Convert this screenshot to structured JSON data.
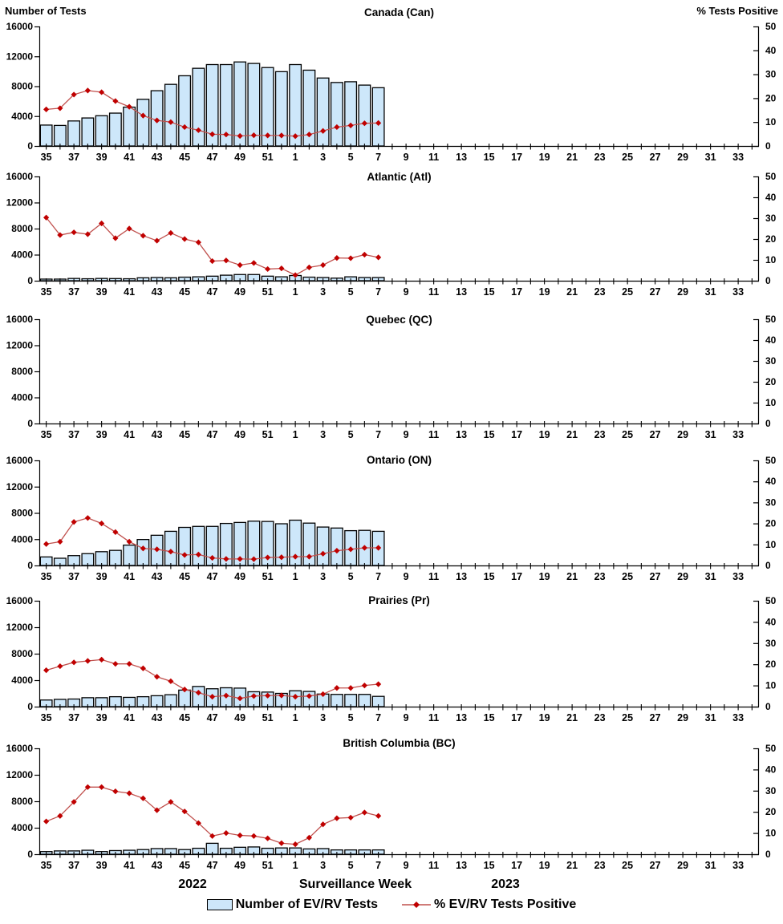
{
  "axis_headers": {
    "left": "Number of Tests",
    "right": "% Tests Positive"
  },
  "footer": {
    "year_left": "2022",
    "x_axis_label": "Surveillance Week",
    "year_right": "2023"
  },
  "legend": {
    "bars_label": "Number of EV/RV Tests",
    "line_label": "% EV/RV Tests Positive"
  },
  "colors": {
    "bar_fill": "#CDE7FA",
    "bar_stroke": "#000000",
    "line_color": "#C0504D",
    "marker_color": "#C00000",
    "axis_color": "#000000"
  },
  "axes": {
    "left_ticks": [
      0,
      4000,
      8000,
      12000,
      16000
    ],
    "left_max": 16000,
    "right_ticks": [
      0,
      10,
      20,
      30,
      40,
      50
    ],
    "right_max": 50,
    "weeks": [
      35,
      36,
      37,
      38,
      39,
      40,
      41,
      42,
      43,
      44,
      45,
      46,
      47,
      48,
      49,
      50,
      51,
      52,
      1,
      2,
      3,
      4,
      5,
      6,
      7,
      8,
      9,
      10,
      11,
      12,
      13,
      14,
      15,
      16,
      17,
      18,
      19,
      20,
      21,
      22,
      23,
      24,
      25,
      26,
      27,
      28,
      29,
      30,
      31,
      32,
      33,
      34
    ]
  },
  "chart_data": [
    {
      "type": "bar+line",
      "title": "Canada (Can)",
      "region": "Canada",
      "ylim_left": [
        0,
        16000
      ],
      "ylim_right": [
        0,
        50
      ],
      "weeks": [
        35,
        36,
        37,
        38,
        39,
        40,
        41,
        42,
        43,
        44,
        45,
        46,
        47,
        48,
        49,
        50,
        51,
        52,
        1,
        2,
        3,
        4,
        5,
        6,
        7
      ],
      "tests": [
        2800,
        2750,
        3350,
        3750,
        4050,
        4400,
        5200,
        6250,
        7400,
        8250,
        9400,
        10400,
        10900,
        10900,
        11250,
        11050,
        10500,
        9950,
        10900,
        10150,
        9100,
        8500,
        8600,
        8150,
        7800
      ],
      "pct_positive": [
        15.3,
        15.8,
        21.5,
        23.2,
        22.5,
        18.8,
        16.4,
        12.7,
        10.7,
        10.0,
        7.9,
        6.6,
        4.9,
        4.8,
        4.2,
        4.5,
        4.4,
        4.4,
        4.1,
        4.8,
        6.3,
        7.9,
        8.6,
        9.5,
        9.6
      ]
    },
    {
      "type": "bar+line",
      "title": "Atlantic (Atl)",
      "region": "Atlantic",
      "ylim_left": [
        0,
        16000
      ],
      "ylim_right": [
        0,
        50
      ],
      "weeks": [
        35,
        36,
        37,
        38,
        39,
        40,
        41,
        42,
        43,
        44,
        45,
        46,
        47,
        48,
        49,
        50,
        51,
        52,
        1,
        2,
        3,
        4,
        5,
        6,
        7
      ],
      "tests": [
        250,
        250,
        350,
        300,
        350,
        330,
        300,
        450,
        500,
        450,
        550,
        600,
        700,
        850,
        950,
        950,
        700,
        600,
        800,
        550,
        500,
        400,
        600,
        500,
        500
      ],
      "pct_positive": [
        30.3,
        21.9,
        23.2,
        22.3,
        27.5,
        20.4,
        25.0,
        21.6,
        19.2,
        22.9,
        20.0,
        18.4,
        9.4,
        9.7,
        7.5,
        8.5,
        5.6,
        5.9,
        2.7,
        6.4,
        7.5,
        10.9,
        10.8,
        12.5,
        11.2
      ]
    },
    {
      "type": "bar+line",
      "title": "Quebec (QC)",
      "region": "Quebec",
      "ylim_left": [
        0,
        16000
      ],
      "ylim_right": [
        0,
        50
      ],
      "weeks": [],
      "tests": [],
      "pct_positive": []
    },
    {
      "type": "bar+line",
      "title": "Ontario (ON)",
      "region": "Ontario",
      "ylim_left": [
        0,
        16000
      ],
      "ylim_right": [
        0,
        50
      ],
      "weeks": [
        35,
        36,
        37,
        38,
        39,
        40,
        41,
        42,
        43,
        44,
        45,
        46,
        47,
        48,
        49,
        50,
        51,
        52,
        1,
        2,
        3,
        4,
        5,
        6,
        7
      ],
      "tests": [
        1300,
        1100,
        1500,
        1800,
        2100,
        2300,
        3100,
        3950,
        4600,
        5200,
        5800,
        5950,
        5950,
        6400,
        6550,
        6750,
        6700,
        6350,
        6900,
        6450,
        5850,
        5700,
        5300,
        5350,
        5200
      ],
      "pct_positive": [
        10.2,
        11.3,
        20.7,
        22.6,
        20.0,
        15.9,
        11.3,
        8.1,
        7.7,
        6.6,
        5.0,
        5.2,
        3.6,
        3.1,
        3.1,
        3.0,
        3.8,
        3.9,
        4.2,
        4.2,
        5.6,
        7.0,
        7.7,
        8.4,
        8.4
      ]
    },
    {
      "type": "bar+line",
      "title": "Prairies (Pr)",
      "region": "Prairies",
      "ylim_left": [
        0,
        16000
      ],
      "ylim_right": [
        0,
        50
      ],
      "weeks": [
        35,
        36,
        37,
        38,
        39,
        40,
        41,
        42,
        43,
        44,
        45,
        46,
        47,
        48,
        49,
        50,
        51,
        52,
        1,
        2,
        3,
        4,
        5,
        6,
        7
      ],
      "tests": [
        1000,
        1100,
        1150,
        1350,
        1350,
        1500,
        1400,
        1500,
        1650,
        1800,
        2500,
        3050,
        2700,
        2850,
        2800,
        2250,
        2200,
        2000,
        2400,
        2300,
        1900,
        1850,
        1850,
        1850,
        1550
      ],
      "pct_positive": [
        17.2,
        19.1,
        20.9,
        21.6,
        22.2,
        20.2,
        20.2,
        18.1,
        14.1,
        12.0,
        8.1,
        6.6,
        4.7,
        5.2,
        3.9,
        5.0,
        5.2,
        5.3,
        4.7,
        5.0,
        5.9,
        8.8,
        8.8,
        10.0,
        10.6
      ]
    },
    {
      "type": "bar+line",
      "title": "British Columbia (BC)",
      "region": "British Columbia",
      "ylim_left": [
        0,
        16000
      ],
      "ylim_right": [
        0,
        50
      ],
      "weeks": [
        35,
        36,
        37,
        38,
        39,
        40,
        41,
        42,
        43,
        44,
        45,
        46,
        47,
        48,
        49,
        50,
        51,
        52,
        1,
        2,
        3,
        4,
        5,
        6,
        7
      ],
      "tests": [
        400,
        500,
        500,
        600,
        400,
        550,
        600,
        700,
        850,
        850,
        700,
        900,
        1650,
        900,
        1050,
        1100,
        900,
        950,
        950,
        800,
        850,
        650,
        650,
        650,
        650
      ],
      "pct_positive": [
        15.5,
        18.1,
        24.7,
        31.7,
        31.7,
        29.7,
        28.8,
        26.4,
        20.8,
        24.7,
        20.2,
        14.7,
        8.6,
        10.0,
        8.9,
        8.6,
        7.5,
        5.2,
        4.7,
        7.8,
        14.1,
        17.0,
        17.3,
        19.7,
        18.1
      ]
    }
  ]
}
